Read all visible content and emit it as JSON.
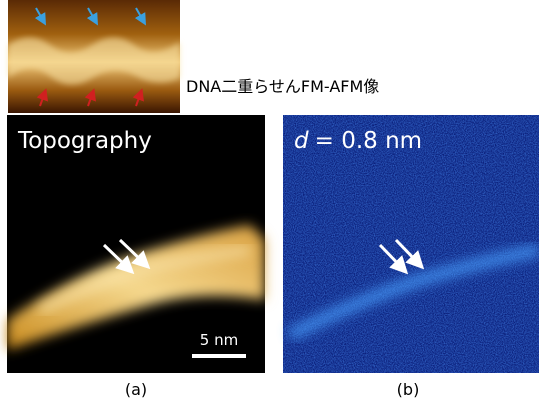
{
  "inset": {
    "caption": "DNA二重らせんFM-AFM像"
  },
  "panels": [
    {
      "title": "Topography",
      "scale_bar": "5 nm",
      "label": "(a)"
    },
    {
      "title": {
        "variable": "d",
        "text": "= 0.8 nm"
      },
      "label": "(b)"
    }
  ]
}
